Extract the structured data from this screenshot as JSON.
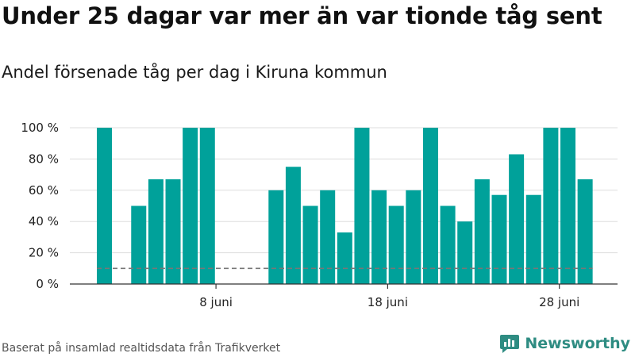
{
  "header": {
    "title": "Under 25 dagar var mer än var tionde tåg sent",
    "subtitle": "Andel försenade tåg per dag i Kiruna kommun"
  },
  "footer": {
    "source": "Baserat på insamlad realtidsdata från Trafikverket",
    "brand": "Newsworthy"
  },
  "colors": {
    "bar": "#00a19a",
    "reference_line": "#777777",
    "brand": "#2e8c82"
  },
  "chart_data": {
    "type": "bar",
    "title": "Under 25 dagar var mer än var tionde tåg sent",
    "subtitle": "Andel försenade tåg per dag i Kiruna kommun",
    "x_start": "1 juni",
    "days": [
      1,
      2,
      3,
      4,
      5,
      6,
      7,
      8,
      9,
      10,
      11,
      12,
      13,
      14,
      15,
      16,
      17,
      18,
      19,
      20,
      21,
      22,
      23,
      24,
      25,
      26,
      27,
      28,
      29,
      30
    ],
    "values": [
      100,
      0,
      50,
      67,
      67,
      100,
      100,
      0,
      0,
      0,
      60,
      75,
      50,
      60,
      33,
      100,
      60,
      50,
      60,
      100,
      50,
      40,
      67,
      57,
      83,
      57,
      100,
      100,
      67,
      0
    ],
    "reference_value": 10,
    "ylim": [
      0,
      100
    ],
    "y_ticks": [
      0,
      20,
      40,
      60,
      80,
      100
    ],
    "y_tick_labels": [
      "0 %",
      "20 %",
      "40 %",
      "60 %",
      "80 %",
      "100 %"
    ],
    "x_ticks": [
      8,
      18,
      28
    ],
    "x_tick_labels": [
      "8 juni",
      "18 juni",
      "28 juni"
    ],
    "grid": true,
    "legend": "none"
  }
}
